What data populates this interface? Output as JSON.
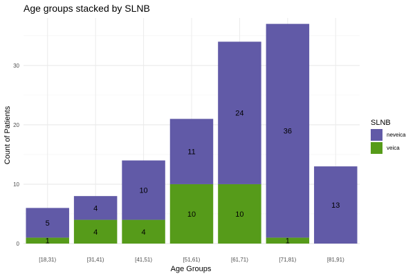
{
  "chart_data": {
    "type": "bar",
    "stacked": true,
    "title": "Age groups stacked by SLNB",
    "xlabel": "Age Groups",
    "ylabel": "Count of Patients",
    "ylim": [
      0,
      38
    ],
    "yticks": [
      0,
      10,
      20,
      30
    ],
    "grid": true,
    "legend": {
      "title": "SLNB",
      "placement": "right"
    },
    "categories": [
      "[18,31)",
      "[31,41)",
      "[41,51)",
      "[51,61)",
      "[61,71)",
      "[71,81)",
      "[81,91)"
    ],
    "series": [
      {
        "name": "veica",
        "color": "#569b1a",
        "values": [
          1,
          4,
          4,
          10,
          10,
          1,
          0
        ],
        "labels": [
          "1",
          "4",
          "4",
          "10",
          "10",
          "1",
          ""
        ]
      },
      {
        "name": "neveica",
        "color": "#615aa7",
        "values": [
          5,
          4,
          10,
          11,
          24,
          36,
          13
        ],
        "labels": [
          "5",
          "4",
          "10",
          "11",
          "24",
          "36",
          "13"
        ]
      }
    ]
  }
}
